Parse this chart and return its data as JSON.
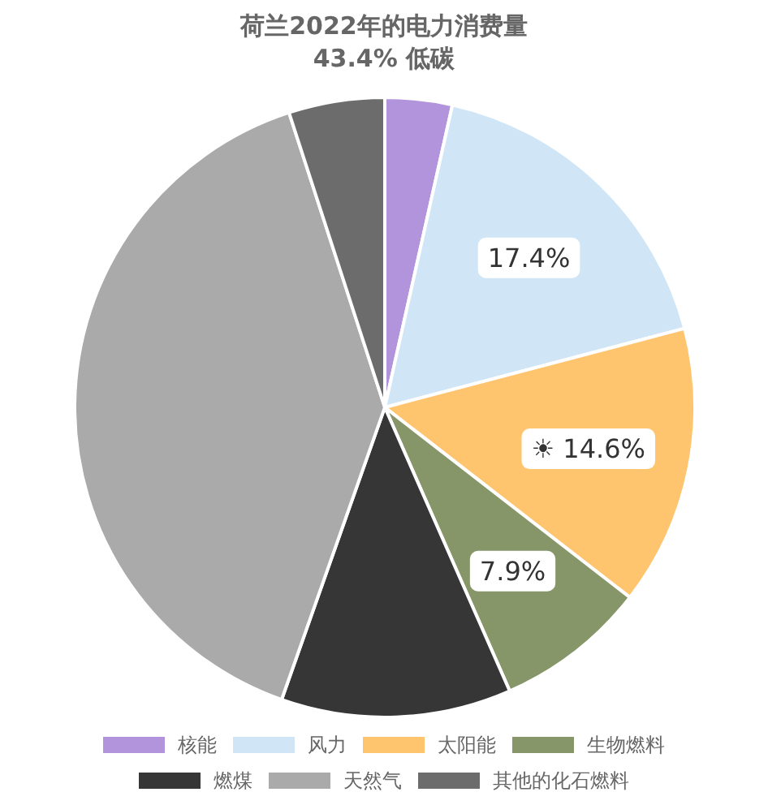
{
  "chart_data": {
    "type": "pie",
    "title": "荷兰2022年的电力消费量",
    "subtitle": "43.4% 低碳",
    "categories": [
      "核能",
      "风力",
      "太阳能",
      "生物燃料",
      "燃煤",
      "天然气",
      "其他的化石燃料"
    ],
    "values": [
      3.5,
      17.4,
      14.6,
      7.9,
      12.0,
      39.6,
      5.0
    ],
    "colors": [
      "#b194dc",
      "#d0e6f6",
      "#ffc46e",
      "#879669",
      "#363636",
      "#aaaaaa",
      "#6c6c6c"
    ],
    "value_labels": [
      null,
      "17.4%",
      "☀ 14.6%",
      "7.9%",
      null,
      null,
      null
    ],
    "legend": "bottom"
  }
}
